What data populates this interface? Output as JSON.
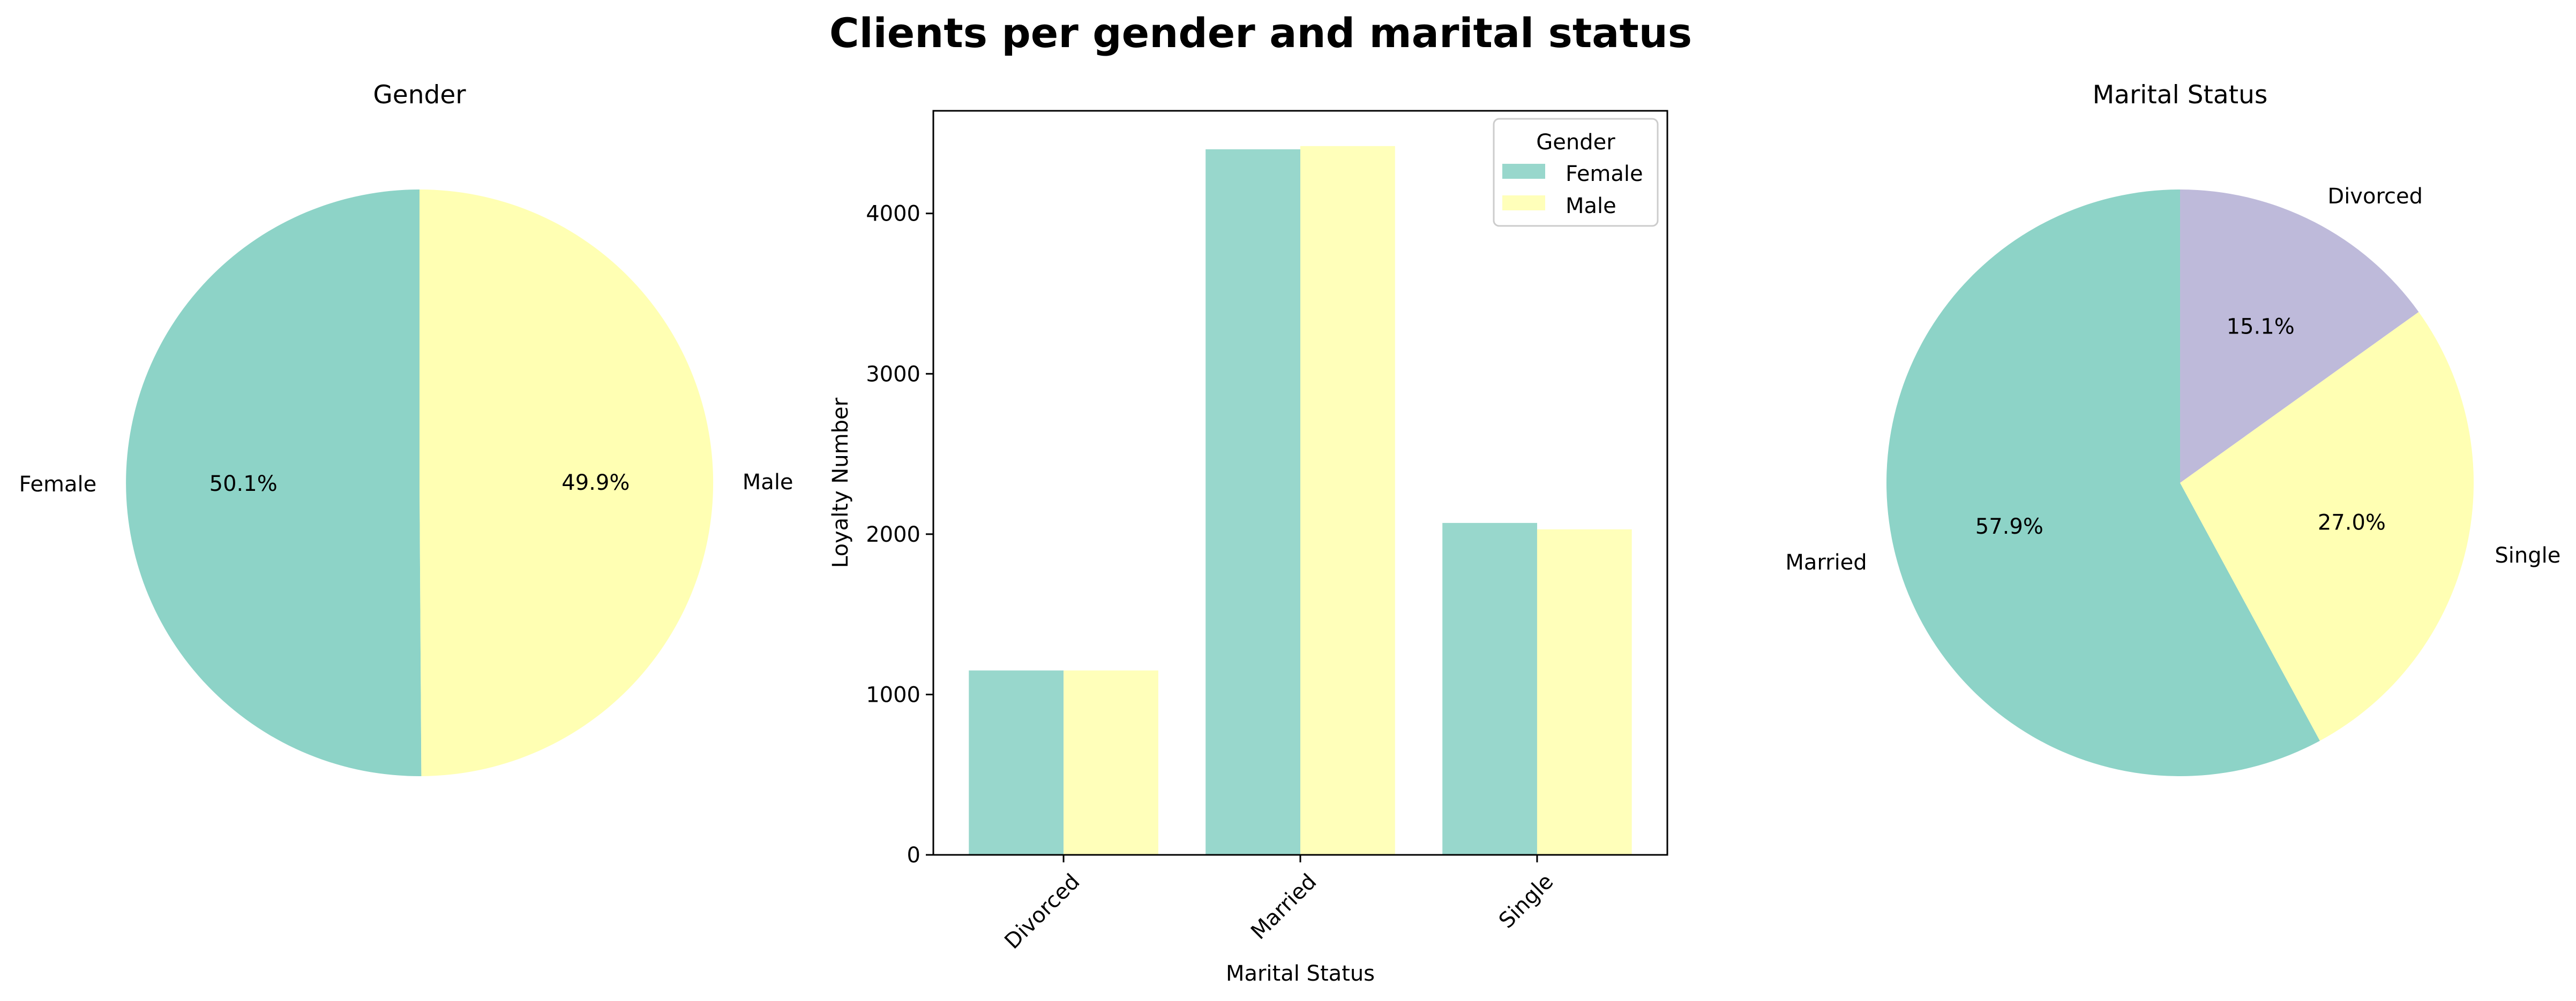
{
  "title": "Clients per gender and marital status",
  "chart_data": [
    {
      "type": "pie",
      "title": "Gender",
      "labels": [
        "Female",
        "Male"
      ],
      "values": [
        50.1,
        49.9
      ],
      "pct_labels": [
        "50.1%",
        "49.9%"
      ],
      "colors": [
        "#8dd3c7",
        "#ffffb3"
      ],
      "start_angle_deg": 90,
      "direction": "counterclockwise"
    },
    {
      "type": "bar",
      "title": "",
      "categories": [
        "Divorced",
        "Married",
        "Single"
      ],
      "series": [
        {
          "name": "Female",
          "values": [
            1150,
            4400,
            2070
          ],
          "color": "#8dd3c7"
        },
        {
          "name": "Male",
          "values": [
            1150,
            4420,
            2030
          ],
          "color": "#ffffb3"
        }
      ],
      "xlabel": "Marital Status",
      "ylabel": "Loyalty Number",
      "ylim": [
        0,
        4640
      ],
      "yticks": [
        0,
        1000,
        2000,
        3000,
        4000
      ],
      "ytick_labels": [
        "0",
        "1000",
        "2000",
        "3000",
        "4000"
      ],
      "xtick_rotation_deg": 45,
      "bar_alpha": 0.9,
      "legend": {
        "title": "Gender",
        "placement": "top-right"
      },
      "grid": false
    },
    {
      "type": "pie",
      "title": "Marital Status",
      "labels": [
        "Married",
        "Single",
        "Divorced"
      ],
      "values": [
        57.9,
        27.0,
        15.1
      ],
      "pct_labels": [
        "57.9%",
        "27.0%",
        "15.1%"
      ],
      "colors": [
        "#8dd3c7",
        "#ffffb3",
        "#bebada"
      ],
      "start_angle_deg": 90,
      "direction": "counterclockwise"
    }
  ]
}
